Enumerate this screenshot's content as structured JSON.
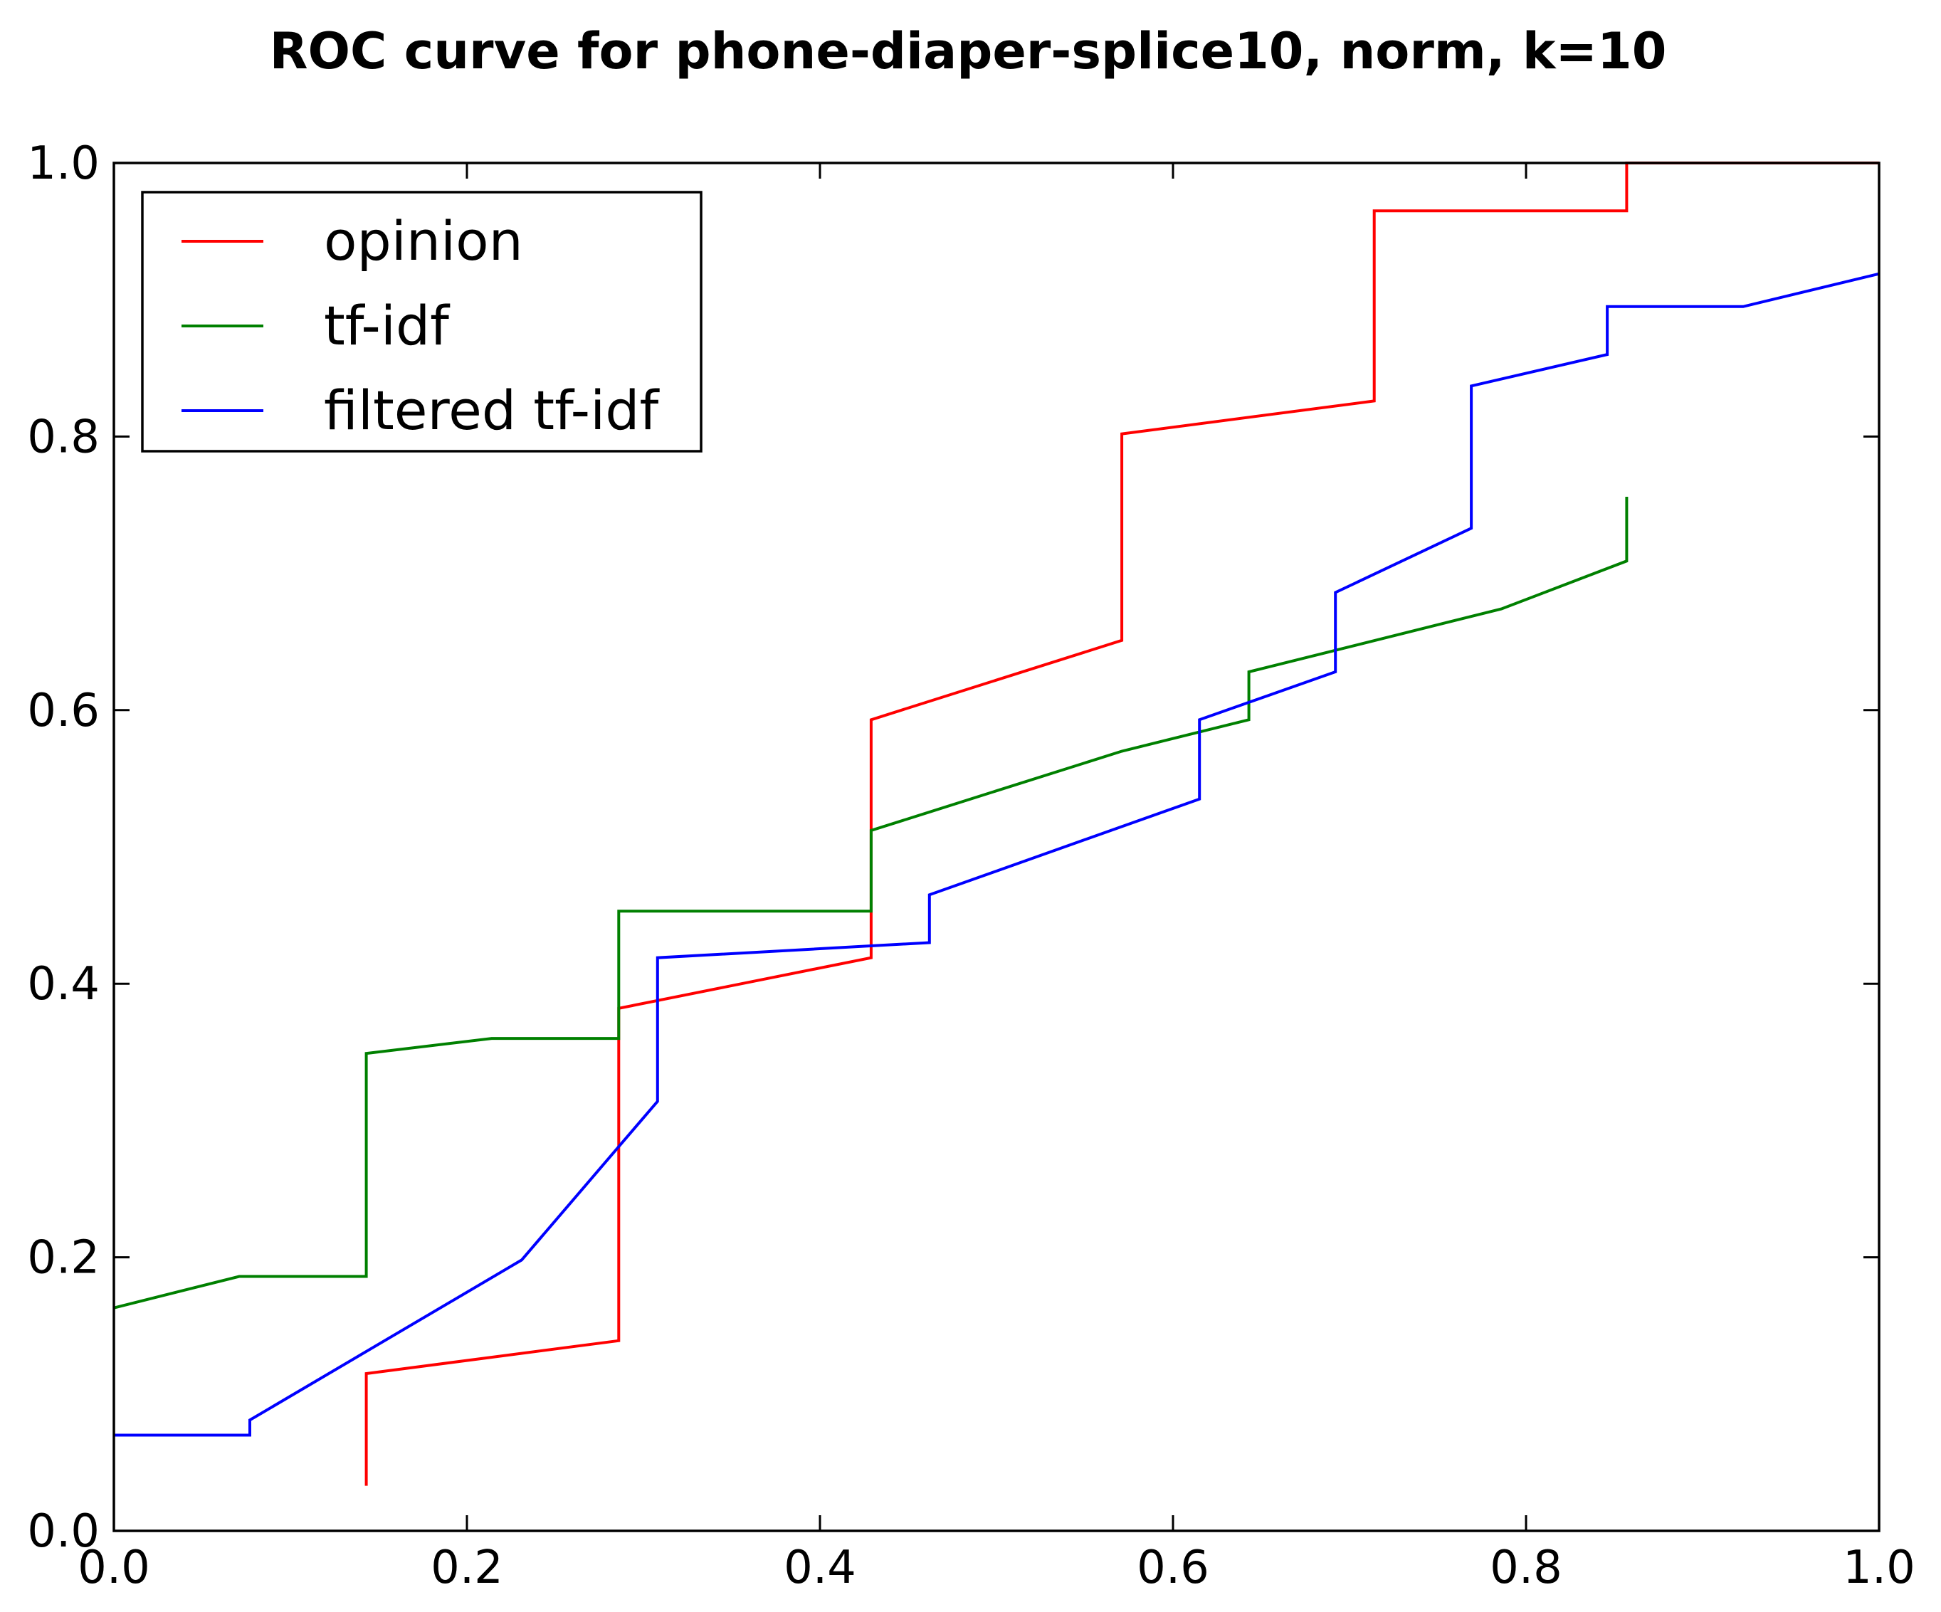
{
  "chart_data": {
    "type": "line",
    "title": "ROC curve for phone-diaper-splice10, norm, k=10",
    "xlabel": "",
    "ylabel": "",
    "xlim": [
      0.0,
      1.0
    ],
    "ylim": [
      0.0,
      1.0
    ],
    "x_ticks": [
      "0.0",
      "0.2",
      "0.4",
      "0.6",
      "0.8",
      "1.0"
    ],
    "y_ticks": [
      "0.0",
      "0.2",
      "0.4",
      "0.6",
      "0.8",
      "1.0"
    ],
    "grid": false,
    "legend_position": "upper-left",
    "series": [
      {
        "name": "opinion",
        "color": "#ff0000",
        "points": [
          [
            0.143,
            0.033
          ],
          [
            0.143,
            0.115
          ],
          [
            0.286,
            0.139
          ],
          [
            0.286,
            0.382
          ],
          [
            0.429,
            0.419
          ],
          [
            0.429,
            0.593
          ],
          [
            0.571,
            0.651
          ],
          [
            0.571,
            0.802
          ],
          [
            0.714,
            0.826
          ],
          [
            0.714,
            0.965
          ],
          [
            0.857,
            0.965
          ],
          [
            0.857,
            1.0
          ],
          [
            1.0,
            1.0
          ]
        ]
      },
      {
        "name": "tf-idf",
        "color": "#008000",
        "points": [
          [
            0.0,
            0.163
          ],
          [
            0.071,
            0.186
          ],
          [
            0.143,
            0.186
          ],
          [
            0.143,
            0.349
          ],
          [
            0.214,
            0.36
          ],
          [
            0.286,
            0.36
          ],
          [
            0.286,
            0.453
          ],
          [
            0.429,
            0.453
          ],
          [
            0.429,
            0.512
          ],
          [
            0.571,
            0.57
          ],
          [
            0.643,
            0.593
          ],
          [
            0.643,
            0.628
          ],
          [
            0.786,
            0.674
          ],
          [
            0.857,
            0.709
          ],
          [
            0.857,
            0.756
          ]
        ]
      },
      {
        "name": "filtered tf-idf",
        "color": "#0000ff",
        "points": [
          [
            0.0,
            0.07
          ],
          [
            0.077,
            0.07
          ],
          [
            0.077,
            0.081
          ],
          [
            0.231,
            0.198
          ],
          [
            0.308,
            0.314
          ],
          [
            0.308,
            0.419
          ],
          [
            0.462,
            0.43
          ],
          [
            0.462,
            0.465
          ],
          [
            0.615,
            0.535
          ],
          [
            0.615,
            0.593
          ],
          [
            0.692,
            0.628
          ],
          [
            0.692,
            0.686
          ],
          [
            0.769,
            0.733
          ],
          [
            0.769,
            0.837
          ],
          [
            0.846,
            0.86
          ],
          [
            0.846,
            0.895
          ],
          [
            0.923,
            0.895
          ],
          [
            1.0,
            0.919
          ]
        ]
      }
    ]
  }
}
